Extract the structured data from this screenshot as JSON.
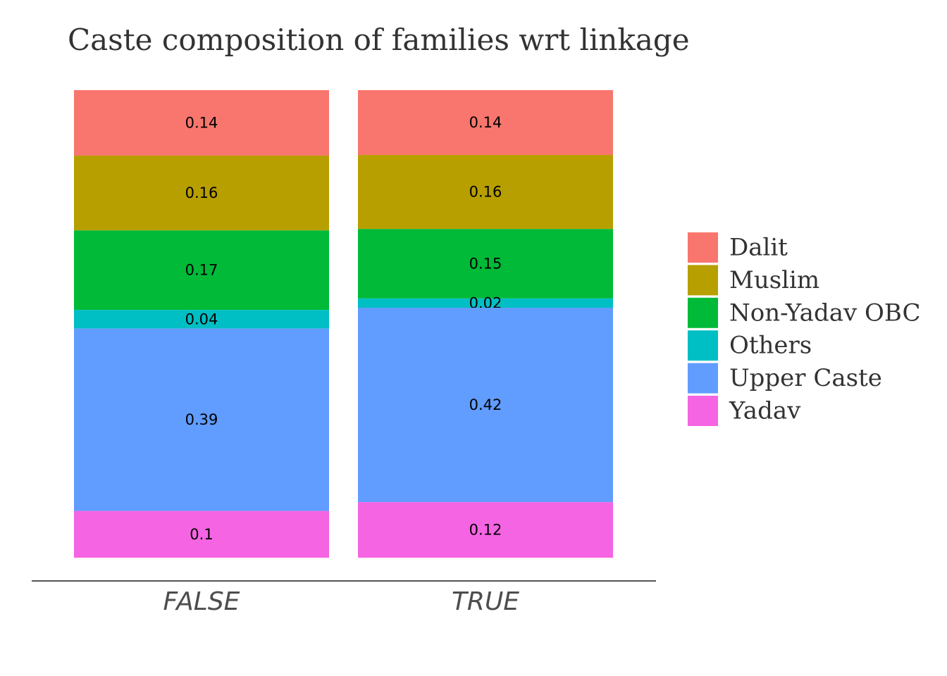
{
  "chart_data": {
    "type": "bar",
    "stacked": true,
    "title": "Caste composition of families wrt linkage",
    "categories": [
      "FALSE",
      "TRUE"
    ],
    "legend_position": "right",
    "grid": false,
    "ylim": [
      0,
      1
    ],
    "series": [
      {
        "name": "Dalit",
        "color": "#F8766D",
        "values": [
          0.14,
          0.14
        ],
        "labels": [
          "0.14",
          "0.14"
        ]
      },
      {
        "name": "Muslim",
        "color": "#B79F00",
        "values": [
          0.16,
          0.16
        ],
        "labels": [
          "0.16",
          "0.16"
        ]
      },
      {
        "name": "Non-Yadav OBC",
        "color": "#00BA38",
        "values": [
          0.17,
          0.15
        ],
        "labels": [
          "0.17",
          "0.15"
        ]
      },
      {
        "name": "Others",
        "color": "#00BFC4",
        "values": [
          0.04,
          0.02
        ],
        "labels": [
          "0.04",
          "0.02"
        ]
      },
      {
        "name": "Upper Caste",
        "color": "#619CFF",
        "values": [
          0.39,
          0.42
        ],
        "labels": [
          "0.39",
          "0.42"
        ]
      },
      {
        "name": "Yadav",
        "color": "#F564E3",
        "values": [
          0.1,
          0.12
        ],
        "labels": [
          "0.1",
          "0.12"
        ]
      }
    ]
  }
}
